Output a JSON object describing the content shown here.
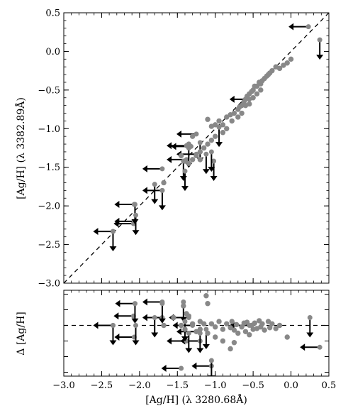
{
  "chart_data": [
    {
      "type": "scatter",
      "panel": "top",
      "xlabel": "",
      "ylabel": "[Ag/H] (λ 3382.89Å)",
      "xlim": [
        -3.0,
        0.5
      ],
      "ylim": [
        -3.0,
        0.5
      ],
      "x_ticks": [
        -3.0,
        -2.5,
        -2.0,
        -1.5,
        -1.0,
        -0.5,
        0.0,
        0.5
      ],
      "y_ticks": [
        "0.5",
        "0.0",
        "−0.5",
        "−1.0",
        "−1.5",
        "−2.0",
        "−2.5",
        "−3.0"
      ],
      "y_tick_values": [
        0.5,
        0.0,
        -0.5,
        -1.0,
        -1.5,
        -2.0,
        -2.5,
        -3.0
      ],
      "reference_line": {
        "style": "dashed",
        "from": [
          -3.0,
          -3.0
        ],
        "to": [
          0.5,
          0.5
        ]
      },
      "point_color": "#888888",
      "points": [
        [
          -1.1,
          -0.88
        ],
        [
          -1.05,
          -0.97
        ],
        [
          -1.0,
          -0.95
        ],
        [
          -0.95,
          -0.9
        ],
        [
          -0.9,
          -0.95
        ],
        [
          -0.85,
          -0.85
        ],
        [
          -0.8,
          -0.82
        ],
        [
          -0.78,
          -0.9
        ],
        [
          -0.75,
          -0.8
        ],
        [
          -0.7,
          -0.75
        ],
        [
          -0.68,
          -0.72
        ],
        [
          -0.65,
          -0.7
        ],
        [
          -0.62,
          -0.65
        ],
        [
          -0.6,
          -0.62
        ],
        [
          -0.58,
          -0.58
        ],
        [
          -0.55,
          -0.55
        ],
        [
          -0.52,
          -0.52
        ],
        [
          -0.5,
          -0.5
        ],
        [
          -0.48,
          -0.45
        ],
        [
          -0.45,
          -0.45
        ],
        [
          -0.42,
          -0.4
        ],
        [
          -0.4,
          -0.42
        ],
        [
          -0.38,
          -0.38
        ],
        [
          -0.35,
          -0.35
        ],
        [
          -0.32,
          -0.32
        ],
        [
          -0.3,
          -0.3
        ],
        [
          -0.28,
          -0.28
        ],
        [
          -0.25,
          -0.25
        ],
        [
          -0.2,
          -0.2
        ],
        [
          -0.15,
          -0.22
        ],
        [
          -0.1,
          -0.18
        ],
        [
          -0.05,
          -0.15
        ],
        [
          0.0,
          -0.1
        ],
        [
          -0.6,
          -0.7
        ],
        [
          -0.55,
          -0.68
        ],
        [
          -0.5,
          -0.6
        ],
        [
          -0.45,
          -0.55
        ],
        [
          -0.4,
          -0.5
        ],
        [
          -0.7,
          -0.85
        ],
        [
          -0.65,
          -0.8
        ],
        [
          -0.9,
          -1.05
        ],
        [
          -0.85,
          -1.0
        ],
        [
          -1.0,
          -1.1
        ],
        [
          -1.05,
          -1.15
        ],
        [
          -1.1,
          -1.2
        ],
        [
          -1.2,
          -1.3
        ],
        [
          -1.25,
          -1.35
        ],
        [
          -1.3,
          -1.4
        ],
        [
          -1.35,
          -1.45
        ],
        [
          -1.4,
          -1.42
        ],
        [
          -1.15,
          -1.25
        ],
        [
          -1.2,
          -1.4
        ],
        [
          -1.3,
          -1.1
        ],
        [
          -1.35,
          -1.2
        ],
        [
          -1.45,
          -1.35
        ],
        [
          -1.68,
          -1.7
        ]
      ],
      "upper_limits_down": [
        [
          0.38,
          0.15
        ],
        [
          -1.02,
          -1.42
        ],
        [
          -1.05,
          -1.3
        ],
        [
          -0.95,
          -0.98
        ],
        [
          -1.2,
          -1.18
        ],
        [
          -1.35,
          -1.25
        ],
        [
          -1.42,
          -1.42
        ],
        [
          -1.4,
          -1.55
        ],
        [
          -1.12,
          -1.33
        ],
        [
          -1.7,
          -1.8
        ],
        [
          -1.8,
          -1.72
        ],
        [
          -2.06,
          -1.98
        ],
        [
          -2.05,
          -2.12
        ],
        [
          -2.35,
          -2.33
        ]
      ],
      "upper_limits_left": [
        [
          0.23,
          0.32
        ],
        [
          -0.55,
          -0.62
        ],
        [
          -1.25,
          -1.07
        ],
        [
          -1.32,
          -1.23
        ],
        [
          -1.38,
          -1.22
        ],
        [
          -1.25,
          -1.33
        ],
        [
          -1.38,
          -1.4
        ],
        [
          -1.7,
          -1.52
        ],
        [
          -1.7,
          -1.8
        ],
        [
          -2.07,
          -1.98
        ],
        [
          -2.07,
          -2.2
        ],
        [
          -2.08,
          -2.23
        ],
        [
          -2.35,
          -2.33
        ]
      ]
    },
    {
      "type": "scatter",
      "panel": "bottom",
      "xlabel": "[Ag/H] (λ 3280.68Å)",
      "ylabel": "Δ [Ag/H]",
      "xlim": [
        -3.0,
        0.5
      ],
      "ylim": [
        -0.65,
        0.45
      ],
      "x_ticks": [
        "−3.0",
        "−2.5",
        "−2.0",
        "−1.5",
        "−1.0",
        "−0.5",
        "0.0",
        "0.5"
      ],
      "x_tick_values": [
        -3.0,
        -2.5,
        -2.0,
        -1.5,
        -1.0,
        -0.5,
        0.0,
        0.5
      ],
      "reference_line": {
        "style": "dashed",
        "y": 0.0
      },
      "point_color": "#888888",
      "points": [
        [
          -1.12,
          0.38
        ],
        [
          -1.1,
          0.28
        ],
        [
          -1.05,
          0.02
        ],
        [
          -1.0,
          -0.02
        ],
        [
          -0.95,
          0.05
        ],
        [
          -0.9,
          -0.05
        ],
        [
          -0.85,
          0.02
        ],
        [
          -0.8,
          -0.03
        ],
        [
          -0.78,
          0.05
        ],
        [
          -0.75,
          -0.06
        ],
        [
          -0.72,
          0.01
        ],
        [
          -0.7,
          -0.1
        ],
        [
          -0.65,
          -0.02
        ],
        [
          -0.62,
          0.03
        ],
        [
          -0.6,
          -0.08
        ],
        [
          -0.58,
          0.04
        ],
        [
          -0.55,
          -0.12
        ],
        [
          -0.52,
          0.0
        ],
        [
          -0.5,
          -0.05
        ],
        [
          -0.48,
          0.03
        ],
        [
          -0.45,
          -0.04
        ],
        [
          -0.42,
          0.06
        ],
        [
          -0.4,
          -0.02
        ],
        [
          -0.38,
          0.02
        ],
        [
          -0.35,
          -0.06
        ],
        [
          -0.3,
          0.05
        ],
        [
          -0.28,
          -0.03
        ],
        [
          -0.25,
          0.02
        ],
        [
          -0.2,
          -0.04
        ],
        [
          -0.15,
          0.0
        ],
        [
          -0.05,
          -0.15
        ],
        [
          -0.75,
          -0.22
        ],
        [
          -0.8,
          -0.3
        ],
        [
          -0.9,
          -0.2
        ],
        [
          -1.0,
          -0.15
        ],
        [
          -1.1,
          -0.1
        ],
        [
          -1.2,
          0.05
        ],
        [
          -1.25,
          -0.08
        ],
        [
          -1.3,
          0.02
        ],
        [
          -1.35,
          0.12
        ],
        [
          -1.4,
          -0.05
        ],
        [
          -1.45,
          0.0
        ],
        [
          -1.55,
          0.1
        ],
        [
          -1.68,
          0.0
        ],
        [
          -1.2,
          -0.05
        ],
        [
          -1.15,
          0.02
        ],
        [
          -1.42,
          0.25
        ],
        [
          -1.38,
          0.15
        ]
      ],
      "upper_limits_down": [
        [
          0.25,
          0.1
        ],
        [
          -1.05,
          -0.45
        ],
        [
          -1.12,
          -0.05
        ],
        [
          -1.2,
          -0.1
        ],
        [
          -1.35,
          -0.1
        ],
        [
          -1.42,
          0.3
        ],
        [
          -1.4,
          0.05
        ],
        [
          -1.7,
          0.28
        ],
        [
          -1.8,
          0.1
        ],
        [
          -2.06,
          0.28
        ],
        [
          -2.05,
          0.0
        ],
        [
          -2.35,
          0.0
        ]
      ],
      "upper_limits_left": [
        [
          0.38,
          -0.28
        ],
        [
          -0.55,
          0.0
        ],
        [
          -1.05,
          -0.52
        ],
        [
          -1.2,
          -0.2
        ],
        [
          -1.25,
          -0.08
        ],
        [
          -1.3,
          0.0
        ],
        [
          -1.35,
          0.1
        ],
        [
          -1.38,
          -0.2
        ],
        [
          -1.45,
          -0.55
        ],
        [
          -1.7,
          0.3
        ],
        [
          -1.7,
          0.1
        ],
        [
          -2.06,
          0.28
        ],
        [
          -2.07,
          -0.15
        ],
        [
          -2.08,
          0.12
        ],
        [
          -2.35,
          0.0
        ]
      ]
    }
  ]
}
